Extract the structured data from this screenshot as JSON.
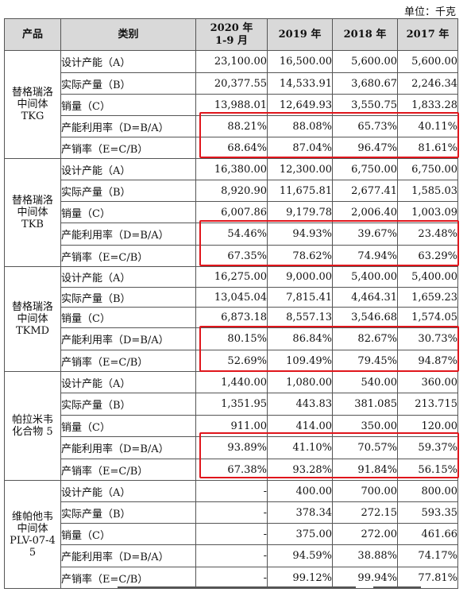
{
  "unit_label": "单位：千克",
  "headers": [
    "产品",
    "类别",
    "2020 年\n1-9 月",
    "2019 年",
    "2018 年",
    "2017 年"
  ],
  "products": [
    {
      "name": "替格瑞洛\n中间体\nTKG",
      "rows": [
        {
          "category": "设计产能（A）",
          "values": [
            "23,100.00",
            "16,500.00",
            "5,600.00",
            "5,600.00"
          ]
        },
        {
          "category": "实际产量（B）",
          "values": [
            "20,377.55",
            "14,533.91",
            "3,680.67",
            "2,246.34"
          ]
        },
        {
          "category": "销量（C）",
          "values": [
            "13,988.01",
            "12,649.93",
            "3,550.75",
            "1,833.28"
          ]
        },
        {
          "category": "产能利用率（D=B/A）",
          "values": [
            "88.21%",
            "88.08%",
            "65.73%",
            "40.11%"
          ]
        },
        {
          "category": "产销率（E=C/B）",
          "values": [
            "68.64%",
            "87.04%",
            "96.47%",
            "81.61%"
          ]
        }
      ]
    },
    {
      "name": "替格瑞洛\n中间体\nTKB",
      "rows": [
        {
          "category": "设计产能（A）",
          "values": [
            "16,380.00",
            "12,300.00",
            "6,750.00",
            "6,750.00"
          ]
        },
        {
          "category": "实际产量（B）",
          "values": [
            "8,920.90",
            "11,675.81",
            "2,677.41",
            "1,585.03"
          ]
        },
        {
          "category": "销量（C）",
          "values": [
            "6,007.86",
            "9,179.78",
            "2,006.40",
            "1,003.09"
          ]
        },
        {
          "category": "产能利用率（D=B/A）",
          "values": [
            "54.46%",
            "94.93%",
            "39.67%",
            "23.48%"
          ]
        },
        {
          "category": "产销率（E=C/B）",
          "values": [
            "67.35%",
            "78.62%",
            "74.94%",
            "63.29%"
          ]
        }
      ]
    },
    {
      "name": "替格瑞洛\n中间体\nTKMD",
      "rows": [
        {
          "category": "设计产能（A）",
          "values": [
            "16,275.00",
            "9,000.00",
            "5,400.00",
            "5,400.00"
          ]
        },
        {
          "category": "实际产量（B）",
          "values": [
            "13,045.04",
            "7,815.41",
            "4,464.31",
            "1,659.23"
          ]
        },
        {
          "category": "销量（C）",
          "values": [
            "6,873.18",
            "8,557.13",
            "3,546.68",
            "1,574.05"
          ]
        },
        {
          "category": "产能利用率（D=B/A）",
          "values": [
            "80.15%",
            "86.84%",
            "82.67%",
            "30.73%"
          ]
        },
        {
          "category": "产销率（E=C/B）",
          "values": [
            "52.69%",
            "109.49%",
            "79.45%",
            "94.87%"
          ]
        }
      ]
    },
    {
      "name": "帕拉米韦\n化合物 5",
      "rows": [
        {
          "category": "设计产能（A）",
          "values": [
            "1,440.00",
            "1,080.00",
            "540.00",
            "360.00"
          ]
        },
        {
          "category": "实际产量（B）",
          "values": [
            "1,351.95",
            "443.83",
            "381.085",
            "213.715"
          ]
        },
        {
          "category": "销量（C）",
          "values": [
            "911.00",
            "414.00",
            "350.00",
            "120.00"
          ]
        },
        {
          "category": "产能利用率（D=B/A）",
          "values": [
            "93.89%",
            "41.10%",
            "70.57%",
            "59.37%"
          ]
        },
        {
          "category": "产销率（E=C/B）",
          "values": [
            "67.38%",
            "93.28%",
            "91.84%",
            "56.15%"
          ]
        }
      ]
    },
    {
      "name": "维帕他韦\n中间体\nPLV-07-4\n5",
      "rows": [
        {
          "category": "设计产能（A）",
          "values": [
            "-",
            "400.00",
            "700.00",
            "800.00"
          ]
        },
        {
          "category": "实际产量（B）",
          "values": [
            "-",
            "378.34",
            "272.15",
            "593.35"
          ]
        },
        {
          "category": "销量（C）",
          "values": [
            "-",
            "375.00",
            "272.00",
            "461.66"
          ]
        },
        {
          "category": "产能利用率（D=B/A）",
          "values": [
            "-",
            "94.59%",
            "38.88%",
            "74.17%"
          ]
        },
        {
          "category": "产销率（E=C/B）",
          "values": [
            "-",
            "99.12%",
            "99.94%",
            "77.81%"
          ]
        }
      ]
    }
  ]
}
